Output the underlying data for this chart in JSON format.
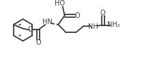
{
  "bg_color": "#ffffff",
  "line_color": "#3a3a3a",
  "lw": 1.3,
  "fs": 6.5,
  "fig_w": 2.28,
  "fig_h": 0.83,
  "dpi": 100,
  "xlim": [
    0,
    228
  ],
  "ylim": [
    0,
    83
  ]
}
